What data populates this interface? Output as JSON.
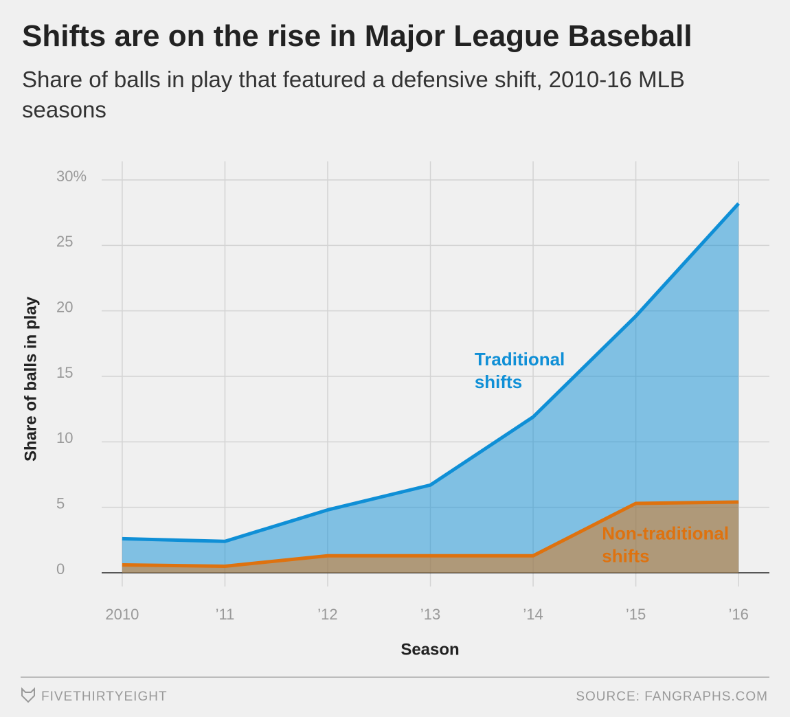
{
  "chart_data": {
    "type": "area",
    "title": "Shifts are on the rise in Major League Baseball",
    "subtitle": "Share of balls in play that featured a defensive shift, 2010-16 MLB seasons",
    "x_label": "Season",
    "y_label": "Share of balls in play",
    "x": [
      2010,
      2011,
      2012,
      2013,
      2014,
      2015,
      2016
    ],
    "series": [
      {
        "name": "Traditional shifts",
        "color": "#0f8fd6",
        "values": [
          2.6,
          2.4,
          4.8,
          6.7,
          11.9,
          19.6,
          28.2
        ]
      },
      {
        "name": "Non-traditional shifts",
        "color": "#de720f",
        "values": [
          0.6,
          0.5,
          1.3,
          1.3,
          1.3,
          5.3,
          5.4
        ]
      }
    ],
    "annotations": [
      {
        "lines": [
          "Traditional",
          "shifts"
        ],
        "color": "#0f8fd6",
        "x": 2013.43,
        "y": 16.2
      },
      {
        "lines": [
          "Non-traditional",
          "shifts"
        ],
        "color": "#de720f",
        "x": 2014.67,
        "y": 2.9
      }
    ],
    "xlim": [
      2009.8,
      2016.3
    ],
    "ylim": [
      0,
      30
    ],
    "xticks": [
      {
        "value": 2010,
        "label": "2010"
      },
      {
        "value": 2011,
        "label": "’11"
      },
      {
        "value": 2012,
        "label": "’12"
      },
      {
        "value": 2013,
        "label": "’13"
      },
      {
        "value": 2014,
        "label": "’14"
      },
      {
        "value": 2015,
        "label": "’15"
      },
      {
        "value": 2016,
        "label": "’16"
      }
    ],
    "yticks": [
      0,
      5,
      10,
      15,
      20,
      25,
      {
        "value": 30,
        "label": "30%"
      }
    ],
    "grid": true,
    "brand": "FIVETHIRTYEIGHT",
    "source": "SOURCE: FANGRAPHS.COM"
  }
}
